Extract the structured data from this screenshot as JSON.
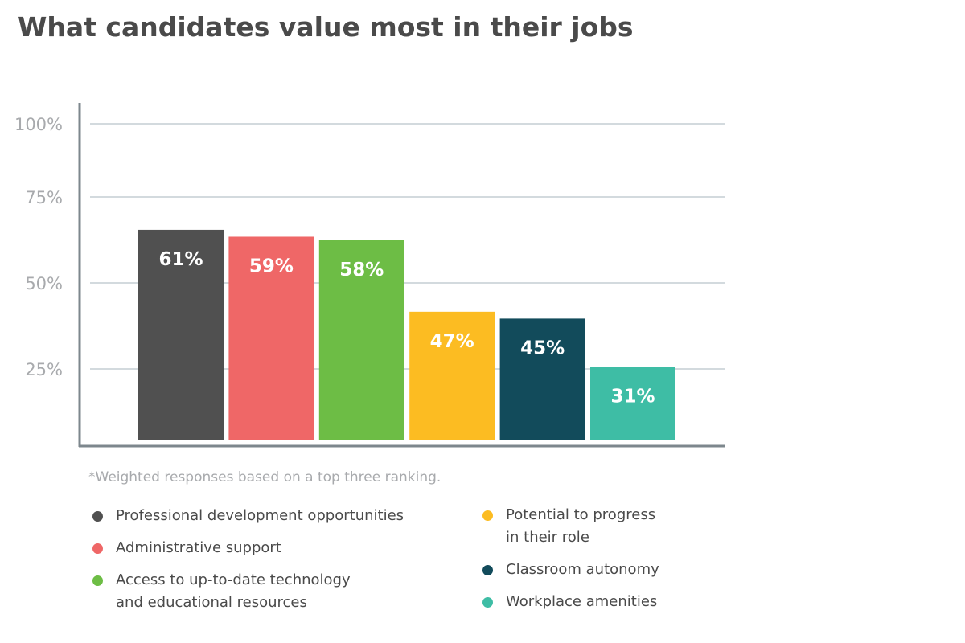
{
  "chart_data": {
    "type": "bar",
    "title": "What candidates value most in their jobs",
    "categories": [
      "Professional development opportunities",
      "Administrative support",
      "Access to up-to-date technology and educational resources",
      "Potential to progress in their role",
      "Classroom autonomy",
      "Workplace amenities"
    ],
    "values": [
      61,
      59,
      58,
      47,
      45,
      31
    ],
    "value_labels": [
      "61%",
      "59%",
      "58%",
      "47%",
      "45%",
      "31%"
    ],
    "colors": [
      "#505050",
      "#ef6767",
      "#6dbd45",
      "#fcbc22",
      "#124b5b",
      "#3ebda5"
    ],
    "yticks": [
      25,
      50,
      75,
      100
    ],
    "ytick_labels": [
      "25%",
      "50%",
      "75%",
      "100%"
    ],
    "ylim": [
      0,
      100
    ],
    "grid": true,
    "xlabel": "",
    "ylabel": "",
    "footnote": "*Weighted responses based on a top three ranking.",
    "legend": [
      {
        "lines": [
          "Professional development opportunities"
        ],
        "color": "#505050"
      },
      {
        "lines": [
          "Administrative support"
        ],
        "color": "#ef6767"
      },
      {
        "lines": [
          "Access to up-to-date technology",
          "and educational resources"
        ],
        "color": "#6dbd45"
      },
      {
        "lines": [
          "Potential to progress",
          "in their role"
        ],
        "color": "#fcbc22"
      },
      {
        "lines": [
          "Classroom autonomy"
        ],
        "color": "#124b5b"
      },
      {
        "lines": [
          "Workplace amenities"
        ],
        "color": "#3ebda5"
      }
    ],
    "legend_placement": "bottom"
  }
}
